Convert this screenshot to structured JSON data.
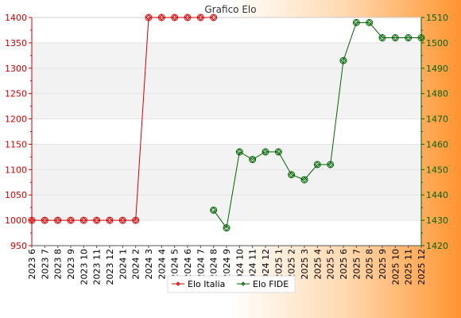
{
  "chart_data": {
    "type": "line",
    "title": "Grafico Elo",
    "categories": [
      "2023 6",
      "2023 7",
      "2023 8",
      "2023 9",
      "2023 10",
      "2023 11",
      "2023 12",
      "2024 1",
      "2024 2",
      "2024 3",
      "2024 4",
      "2024 5",
      "2024 6",
      "2024 7",
      "2024 8",
      "2024 9",
      "2024 10",
      "2024 11",
      "2024 12",
      "2025 1",
      "2025 2",
      "2025 3",
      "2025 4",
      "2025 5",
      "2025 6",
      "2025 7",
      "2025 8",
      "2025 9",
      "2025 10",
      "2025 11",
      "2025 12"
    ],
    "y_left": {
      "min": 950,
      "max": 1400,
      "ticks": [
        950,
        1000,
        1050,
        1100,
        1150,
        1200,
        1250,
        1300,
        1350,
        1400
      ]
    },
    "y_right": {
      "min": 1420,
      "max": 1510,
      "ticks": [
        1420,
        1430,
        1440,
        1450,
        1460,
        1470,
        1480,
        1490,
        1500,
        1510
      ]
    },
    "grid": "horizontal bands",
    "legend_position": "bottom",
    "series": [
      {
        "name": "Elo Italia",
        "axis": "left",
        "color": "#d40000",
        "values": [
          1000,
          1000,
          1000,
          1000,
          1000,
          1000,
          1000,
          1000,
          1000,
          1400,
          1400,
          1400,
          1400,
          1400,
          1400,
          null,
          null,
          null,
          null,
          null,
          null,
          null,
          null,
          null,
          null,
          null,
          null,
          null,
          null,
          null,
          null
        ]
      },
      {
        "name": "Elo FIDE",
        "axis": "right",
        "color": "#006400",
        "values": [
          null,
          null,
          null,
          null,
          null,
          null,
          null,
          null,
          null,
          null,
          null,
          null,
          null,
          null,
          1434,
          1427,
          1457,
          1454,
          1457,
          1457,
          1448,
          1446,
          1452,
          1452,
          1493,
          1508,
          1508,
          1502,
          1502,
          1502,
          1502
        ]
      }
    ]
  }
}
